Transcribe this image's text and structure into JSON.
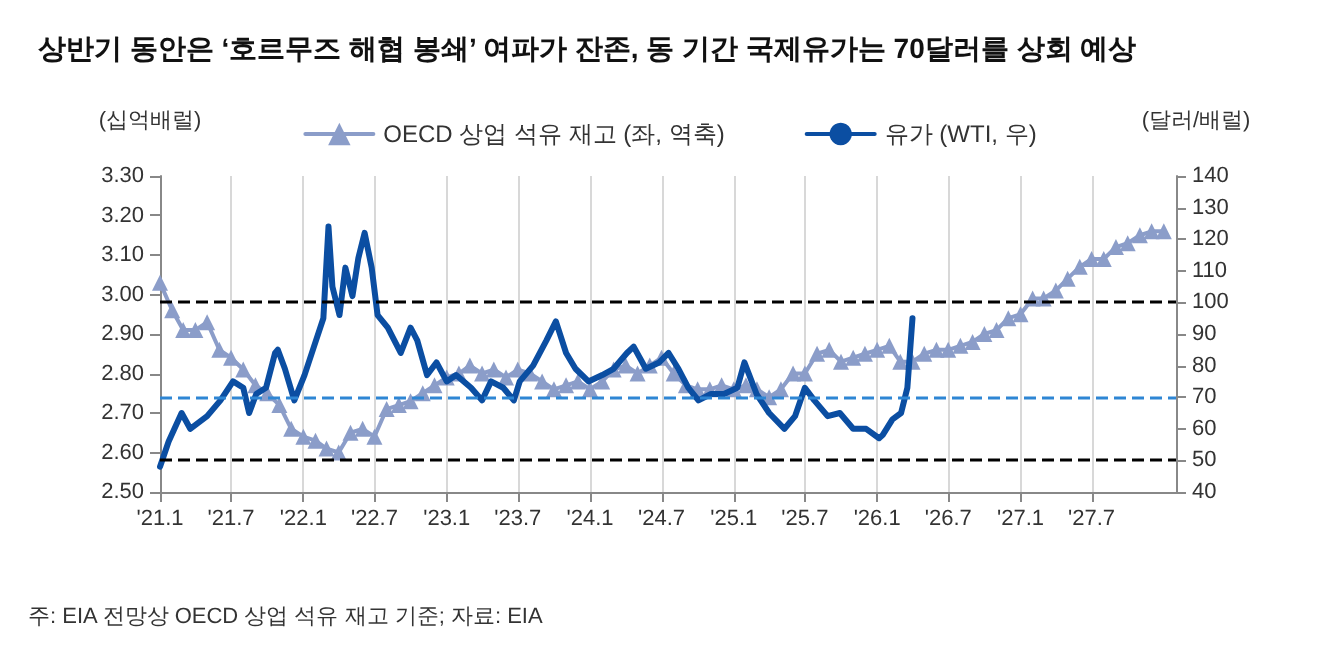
{
  "chart_data": {
    "type": "line",
    "title": "상반기 동안은 ‘호르무즈 해협 봉쇄’ 여파가 잔존, 동 기간 국제유가는 70달러를 상회 예상",
    "ylabel": "(십억배럴)",
    "y2label": "(달러/배럴)",
    "annotations": [
      "주: EIA 전망상 OECD 상업 석유 재고 기준; 자료: EIA"
    ],
    "xlim": [
      "2021-01",
      "2028-02"
    ],
    "xticks": [
      {
        "value": "2021-01",
        "label": "'21.1"
      },
      {
        "value": "2021-07",
        "label": "'21.7"
      },
      {
        "value": "2022-01",
        "label": "'22.1"
      },
      {
        "value": "2022-07",
        "label": "'22.7"
      },
      {
        "value": "2023-01",
        "label": "'23.1"
      },
      {
        "value": "2023-07",
        "label": "'23.7"
      },
      {
        "value": "2024-01",
        "label": "'24.1"
      },
      {
        "value": "2024-07",
        "label": "'24.7"
      },
      {
        "value": "2025-01",
        "label": "'25.1"
      },
      {
        "value": "2025-07",
        "label": "'25.7"
      },
      {
        "value": "2026-01",
        "label": "'26.1"
      },
      {
        "value": "2026-07",
        "label": "'26.7"
      },
      {
        "value": "2027-01",
        "label": "'27.1"
      },
      {
        "value": "2027-07",
        "label": "'27.7"
      }
    ],
    "ylim": [
      2.5,
      3.3
    ],
    "yticks": [
      {
        "value": 2.5,
        "label": "2.50"
      },
      {
        "value": 2.6,
        "label": "2.60"
      },
      {
        "value": 2.7,
        "label": "2.70"
      },
      {
        "value": 2.8,
        "label": "2.80"
      },
      {
        "value": 2.9,
        "label": "2.90"
      },
      {
        "value": 3.0,
        "label": "3.00"
      },
      {
        "value": 3.1,
        "label": "3.10"
      },
      {
        "value": 3.2,
        "label": "3.20"
      },
      {
        "value": 3.3,
        "label": "3.30"
      }
    ],
    "y2lim": [
      40,
      140
    ],
    "y2ticks": [
      40,
      50,
      60,
      70,
      80,
      90,
      100,
      110,
      120,
      130,
      140
    ],
    "grid": "x",
    "legend": "top",
    "ref_lines": [
      {
        "axis": "y2",
        "value": 100,
        "color": "#000000",
        "line_style": "dashed"
      },
      {
        "axis": "y2",
        "value": 70,
        "color": "#2e86d4",
        "line_style": "dashed"
      },
      {
        "axis": "y2",
        "value": 50,
        "color": "#000000",
        "line_style": "dashed"
      }
    ],
    "series": [
      {
        "name": "OECD 상업 석유 재고 (좌, 역축)",
        "color": "#8b9dc9",
        "marker": "triangle",
        "x": [
          "2021-01",
          "2021-02",
          "2021-03",
          "2021-04",
          "2021-05",
          "2021-06",
          "2021-07",
          "2021-08",
          "2021-09",
          "2021-10",
          "2021-11",
          "2021-12",
          "2022-01",
          "2022-02",
          "2022-03",
          "2022-04",
          "2022-05",
          "2022-06",
          "2022-07",
          "2022-08",
          "2022-09",
          "2022-10",
          "2022-11",
          "2022-12",
          "2023-01",
          "2023-02",
          "2023-03",
          "2023-04",
          "2023-05",
          "2023-06",
          "2023-07",
          "2023-08",
          "2023-09",
          "2023-10",
          "2023-11",
          "2023-12",
          "2024-01",
          "2024-02",
          "2024-03",
          "2024-04",
          "2024-05",
          "2024-06",
          "2024-07",
          "2024-08",
          "2024-09",
          "2024-10",
          "2024-11",
          "2024-12",
          "2025-01",
          "2025-02",
          "2025-03",
          "2025-04",
          "2025-05",
          "2025-06",
          "2025-07",
          "2025-08",
          "2025-09",
          "2025-10",
          "2025-11",
          "2025-12",
          "2026-01",
          "2026-02",
          "2026-03",
          "2026-04",
          "2026-05",
          "2026-06",
          "2026-07",
          "2026-08",
          "2026-09",
          "2026-10",
          "2026-11",
          "2026-12",
          "2027-01",
          "2027-02",
          "2027-03",
          "2027-04",
          "2027-05",
          "2027-06",
          "2027-07",
          "2027-08",
          "2027-09",
          "2027-10",
          "2027-11",
          "2027-12",
          "2028-01"
        ],
        "values": [
          3.03,
          2.96,
          2.91,
          2.91,
          2.93,
          2.86,
          2.84,
          2.81,
          2.77,
          2.75,
          2.72,
          2.66,
          2.64,
          2.63,
          2.61,
          2.6,
          2.65,
          2.66,
          2.64,
          2.71,
          2.72,
          2.73,
          2.75,
          2.77,
          2.79,
          2.8,
          2.82,
          2.8,
          2.81,
          2.79,
          2.81,
          2.8,
          2.78,
          2.76,
          2.77,
          2.78,
          2.76,
          2.78,
          2.81,
          2.82,
          2.8,
          2.82,
          2.84,
          2.8,
          2.77,
          2.76,
          2.76,
          2.77,
          2.76,
          2.77,
          2.76,
          2.74,
          2.76,
          2.8,
          2.8,
          2.85,
          2.86,
          2.83,
          2.84,
          2.85,
          2.86,
          2.87,
          2.83,
          2.83,
          2.85,
          2.86,
          2.86,
          2.87,
          2.88,
          2.9,
          2.91,
          2.94,
          2.95,
          2.99,
          2.99,
          3.01,
          3.04,
          3.07,
          3.09,
          3.09,
          3.12,
          3.13,
          3.15,
          3.16,
          3.16
        ]
      },
      {
        "name": "유가 (WTI, 우)",
        "color": "#0b4ea2",
        "axis": "y2",
        "marker": "none",
        "x": [
          "2021-01-01",
          "2021-01-23",
          "2021-02-25",
          "2021-03-19",
          "2021-05-01",
          "2021-06-04",
          "2021-07-06",
          "2021-08-01",
          "2021-08-16",
          "2021-09-03",
          "2021-09-28",
          "2021-10-21",
          "2021-10-28",
          "2021-11-15",
          "2021-12-09",
          "2022-01-04",
          "2022-01-28",
          "2022-02-21",
          "2022-03-06",
          "2022-03-16",
          "2022-04-03",
          "2022-04-18",
          "2022-05-06",
          "2022-05-21",
          "2022-06-06",
          "2022-06-24",
          "2022-07-09",
          "2022-08-04",
          "2022-09-06",
          "2022-10-01",
          "2022-10-18",
          "2022-11-12",
          "2022-12-06",
          "2023-01-01",
          "2023-01-25",
          "2023-03-04",
          "2023-04-01",
          "2023-04-24",
          "2023-05-25",
          "2023-06-21",
          "2023-07-06",
          "2023-08-09",
          "2023-09-12",
          "2023-10-06",
          "2023-11-01",
          "2023-11-25",
          "2023-12-28",
          "2024-02-01",
          "2024-03-01",
          "2024-04-04",
          "2024-04-21",
          "2024-05-22",
          "2024-06-25",
          "2024-07-19",
          "2024-08-13",
          "2024-09-07",
          "2024-10-03",
          "2024-11-04",
          "2024-12-07",
          "2025-01-10",
          "2025-01-28",
          "2025-02-28",
          "2025-04-01",
          "2025-05-10",
          "2025-06-06",
          "2025-07-01",
          "2025-07-25",
          "2025-08-28",
          "2025-09-28",
          "2025-11-01",
          "2025-12-04",
          "2026-01-06",
          "2026-01-15",
          "2026-02-09",
          "2026-03-03",
          "2026-03-19",
          "2026-04-01"
        ],
        "values": [
          48,
          56,
          65,
          60,
          64,
          69,
          75,
          73,
          65,
          71,
          73,
          84,
          85,
          79,
          69,
          77,
          86,
          95,
          124,
          105,
          96,
          111,
          102,
          114,
          122,
          111,
          96,
          92,
          84,
          92,
          88,
          77,
          81,
          75,
          77,
          73,
          69,
          75,
          73,
          69,
          75,
          80,
          88,
          94,
          84,
          79,
          75,
          77,
          79,
          84,
          86,
          79,
          81,
          84,
          79,
          73,
          69,
          71,
          71,
          73,
          81,
          71,
          65,
          60,
          64,
          73,
          69,
          64,
          65,
          60,
          60,
          57,
          58,
          63,
          65,
          73,
          95
        ]
      }
    ]
  }
}
